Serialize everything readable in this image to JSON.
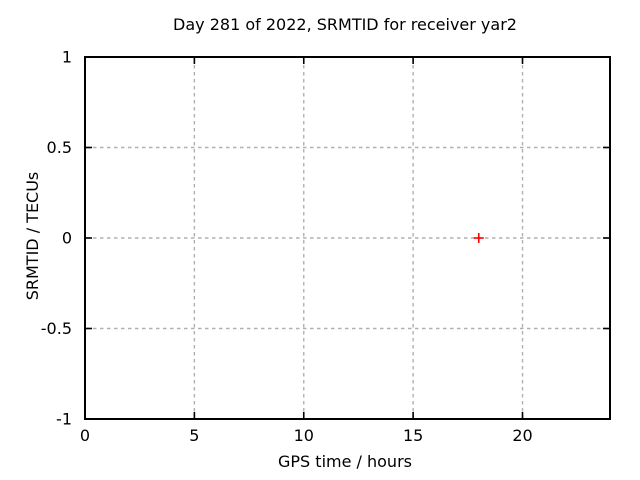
{
  "chart_data": {
    "type": "scatter",
    "title": "Day 281 of 2022, SRMTID for receiver yar2",
    "xlabel": "GPS time / hours",
    "ylabel": "SRMTID / TECUs",
    "xlim": [
      0,
      24
    ],
    "ylim": [
      -1,
      1
    ],
    "grid": true,
    "legend_position": "none",
    "xticks": [
      {
        "value": 0,
        "label": "0"
      },
      {
        "value": 5,
        "label": "5"
      },
      {
        "value": 10,
        "label": "10"
      },
      {
        "value": 15,
        "label": "15"
      },
      {
        "value": 20,
        "label": "20"
      }
    ],
    "yticks": [
      {
        "value": 1,
        "label": "1"
      },
      {
        "value": 0.5,
        "label": "0.5"
      },
      {
        "value": 0,
        "label": "0"
      },
      {
        "value": -0.5,
        "label": "-0.5"
      },
      {
        "value": -1,
        "label": "-1"
      }
    ],
    "series": [
      {
        "name": "SRMTID",
        "marker": "plus",
        "color": "#ff0000",
        "points": [
          [
            18,
            0
          ]
        ]
      }
    ]
  },
  "colors": {
    "background": "#ffffff",
    "axis": "#000000",
    "grid": "#b0b0b0",
    "text": "#000000"
  }
}
